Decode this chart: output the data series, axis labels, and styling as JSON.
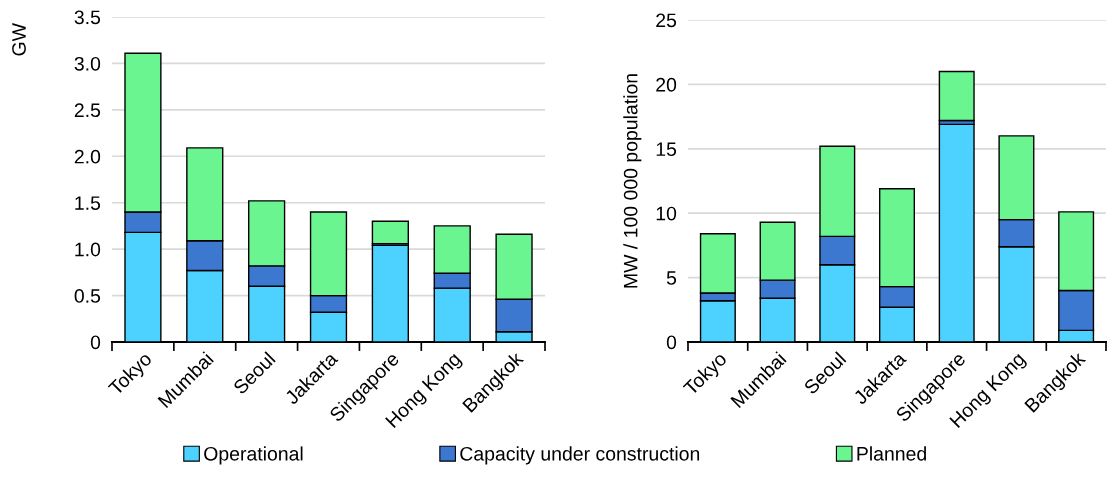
{
  "chart_data": [
    {
      "type": "bar",
      "stacked": true,
      "ylabel": "GW",
      "categories": [
        "Tokyo",
        "Mumbai",
        "Seoul",
        "Jakarta",
        "Singapore",
        "Hong Kong",
        "Bangkok"
      ],
      "series": [
        {
          "name": "Operational",
          "color": "#4dd2ff",
          "values": [
            1.18,
            0.77,
            0.6,
            0.32,
            1.04,
            0.58,
            0.11
          ]
        },
        {
          "name": "Capacity under construction",
          "color": "#3c78d0",
          "values": [
            0.22,
            0.32,
            0.22,
            0.18,
            0.02,
            0.16,
            0.35
          ]
        },
        {
          "name": "Planned",
          "color": "#6af590",
          "values": [
            1.71,
            1.0,
            0.7,
            0.9,
            0.24,
            0.51,
            0.7
          ]
        }
      ],
      "ylim": [
        0,
        3.5
      ],
      "yticks": [
        0,
        0.5,
        {
          "value": 1,
          "label": "1.0"
        },
        1.5,
        {
          "value": 2,
          "label": "2.0"
        },
        2.5,
        {
          "value": 3,
          "label": "3.0"
        },
        3.5
      ],
      "grid": "y",
      "legend": "bottom"
    },
    {
      "type": "bar",
      "stacked": true,
      "ylabel": "MW / 100 000 population",
      "categories": [
        "Tokyo",
        "Mumbai",
        "Seoul",
        "Jakarta",
        "Singapore",
        "Hong Kong",
        "Bangkok"
      ],
      "series": [
        {
          "color": "#4dd2ff",
          "values": [
            3.2,
            3.4,
            6.0,
            2.7,
            16.9,
            7.4,
            0.9
          ]
        },
        {
          "color": "#3c78d0",
          "values": [
            0.6,
            1.4,
            2.2,
            1.6,
            0.3,
            2.1,
            3.1
          ]
        },
        {
          "color": "#6af590",
          "values": [
            4.6,
            4.5,
            7.0,
            7.6,
            3.8,
            6.5,
            6.1
          ]
        }
      ],
      "ylim": [
        0,
        25
      ],
      "yticks": [
        0,
        5,
        10,
        15,
        20,
        25
      ],
      "grid": "y"
    }
  ]
}
